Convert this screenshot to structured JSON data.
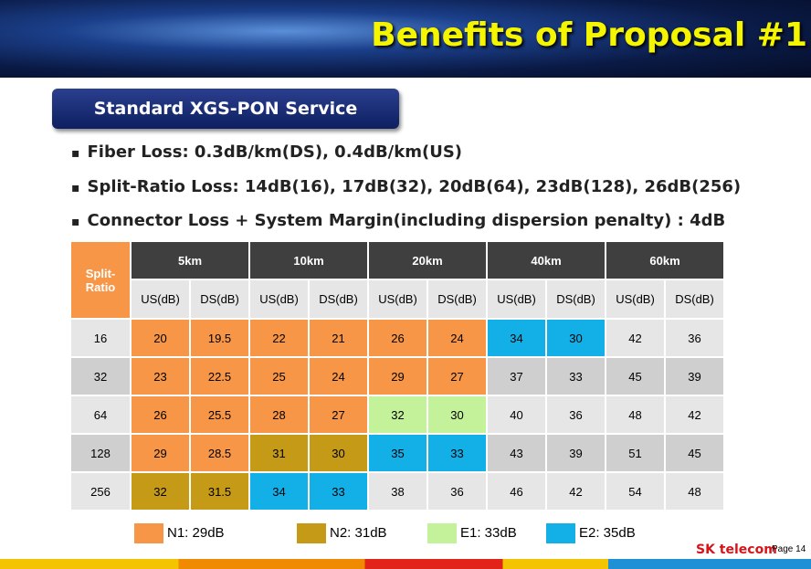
{
  "header": {
    "title": "Benefits of Proposal #1"
  },
  "section": "Standard XGS-PON Service",
  "bullets": [
    "Fiber Loss: 0.3dB/km(DS), 0.4dB/km(US)",
    "Split-Ratio Loss: 14dB(16), 17dB(32), 20dB(64), 23dB(128), 26dB(256)",
    "Connector Loss + System Margin(including dispersion penalty) : 4dB"
  ],
  "table": {
    "corner": "Split-Ratio",
    "groups": [
      "5km",
      "10km",
      "20km",
      "40km",
      "60km"
    ],
    "columns": [
      "US(dB)",
      "DS(dB)",
      "US(dB)",
      "DS(dB)",
      "US(dB)",
      "DS(dB)",
      "US(dB)",
      "DS(dB)",
      "US(dB)",
      "DS(dB)"
    ],
    "rows": [
      {
        "label": "16",
        "values": [
          "20",
          "19.5",
          "22",
          "21",
          "26",
          "24",
          "34",
          "30",
          "42",
          "36"
        ],
        "colors": [
          "#f79646",
          "#f79646",
          "#f79646",
          "#f79646",
          "#f79646",
          "#f79646",
          "#13b0e8",
          "#13b0e8",
          null,
          null
        ]
      },
      {
        "label": "32",
        "values": [
          "23",
          "22.5",
          "25",
          "24",
          "29",
          "27",
          "37",
          "33",
          "45",
          "39"
        ],
        "colors": [
          "#f79646",
          "#f79646",
          "#f79646",
          "#f79646",
          "#f79646",
          "#f79646",
          null,
          null,
          null,
          null
        ]
      },
      {
        "label": "64",
        "values": [
          "26",
          "25.5",
          "28",
          "27",
          "32",
          "30",
          "40",
          "36",
          "48",
          "42"
        ],
        "colors": [
          "#f79646",
          "#f79646",
          "#f79646",
          "#f79646",
          "#c3f29a",
          "#c3f29a",
          null,
          null,
          null,
          null
        ]
      },
      {
        "label": "128",
        "values": [
          "29",
          "28.5",
          "31",
          "30",
          "35",
          "33",
          "43",
          "39",
          "51",
          "45"
        ],
        "colors": [
          "#f79646",
          "#f79646",
          "#c49a17",
          "#c49a17",
          "#13b0e8",
          "#13b0e8",
          null,
          null,
          null,
          null
        ]
      },
      {
        "label": "256",
        "values": [
          "32",
          "31.5",
          "34",
          "33",
          "38",
          "36",
          "46",
          "42",
          "54",
          "48"
        ],
        "colors": [
          "#c49a17",
          "#c49a17",
          "#13b0e8",
          "#13b0e8",
          null,
          null,
          null,
          null,
          null,
          null
        ]
      }
    ]
  },
  "legend": [
    {
      "label": "N1: 29dB",
      "color": "#f79646"
    },
    {
      "label": "N2: 31dB",
      "color": "#c49a17"
    },
    {
      "label": "E1: 33dB",
      "color": "#c3f29a"
    },
    {
      "label": "E2: 35dB",
      "color": "#13b0e8"
    }
  ],
  "footer": {
    "brand": "SK telecom",
    "page": "Page 14"
  }
}
